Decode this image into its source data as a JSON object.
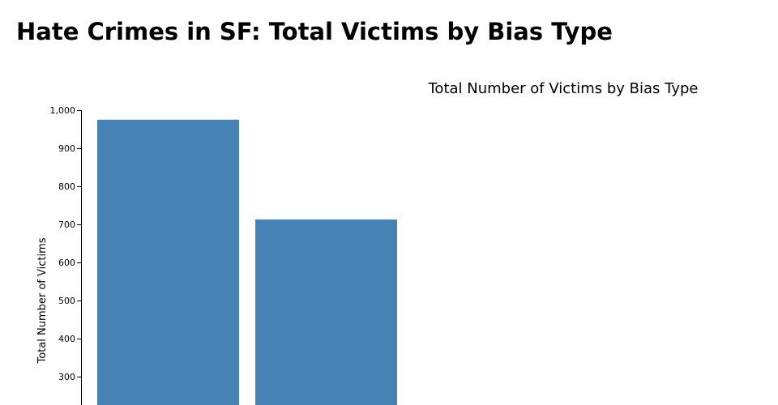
{
  "page": {
    "title": "Hate Crimes in SF: Total Victims by Bias Type"
  },
  "chart_data": {
    "type": "bar",
    "title": "Total Number of Victims by Bias Type",
    "xlabel": "",
    "ylabel": "Total Number of Victims",
    "categories": [
      "",
      ""
    ],
    "values": [
      975,
      713
    ],
    "ylim": [
      0,
      1000
    ],
    "y_ticks": [
      300,
      400,
      500,
      600,
      700,
      800,
      900,
      1000
    ],
    "y_tick_labels": [
      "300",
      "400",
      "500",
      "600",
      "700",
      "800",
      "900",
      "1,000"
    ],
    "bar_color": "#4682b4",
    "grid": false
  }
}
